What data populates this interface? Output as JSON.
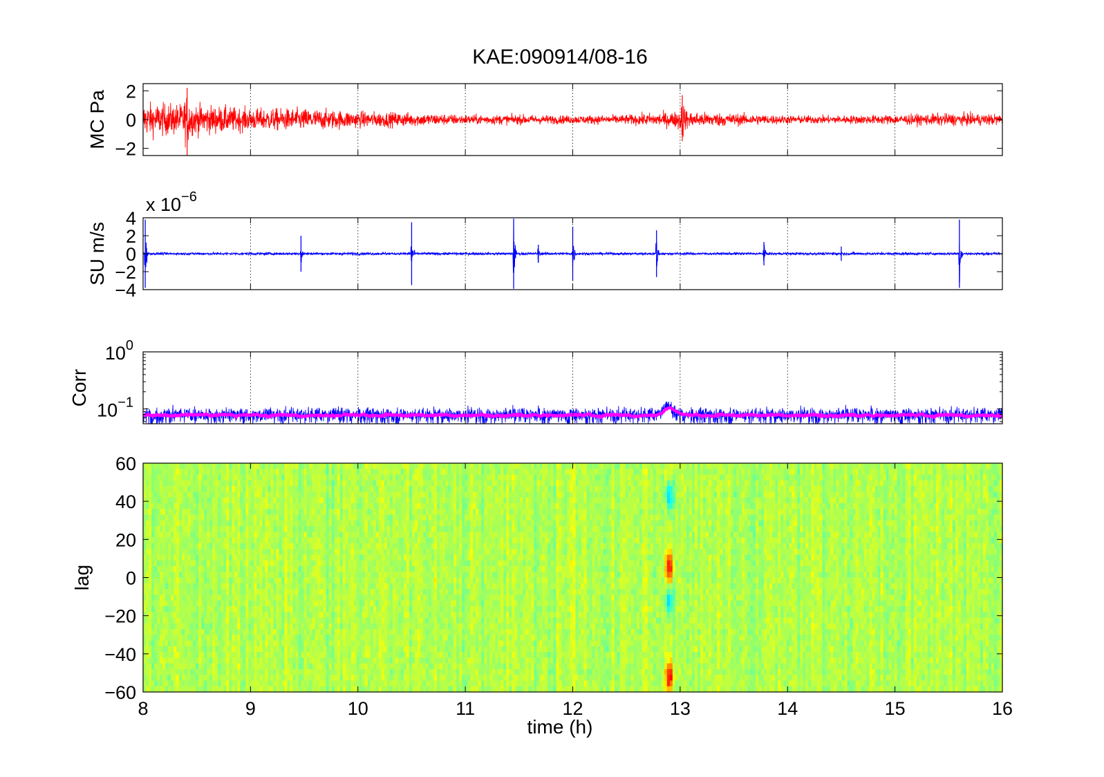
{
  "figure": {
    "title": "KAE:090914/08-16",
    "xlabel": "time (h)"
  },
  "chart_data": [
    {
      "type": "line",
      "ylabel": "MC Pa",
      "xlim": [
        8,
        16
      ],
      "ylim": [
        -2.5,
        2.5
      ],
      "yticks": [
        -2,
        0,
        2
      ],
      "ytick_labels": [
        "−2",
        "0",
        "2"
      ],
      "xticks": [
        8,
        9,
        10,
        11,
        12,
        13,
        14,
        15,
        16
      ],
      "grid": "x-dotted",
      "series": [
        {
          "color": "#ff0000",
          "description_envelope_hours": [
            8,
            8.5,
            9,
            9.5,
            10,
            10.5,
            11,
            11.5,
            12,
            12.5,
            13,
            13.5,
            14,
            14.5,
            15,
            15.5,
            16
          ],
          "amplitude_envelope": [
            1.2,
            1.1,
            0.8,
            0.8,
            0.6,
            0.5,
            0.35,
            0.35,
            0.3,
            0.35,
            0.6,
            0.45,
            0.3,
            0.3,
            0.35,
            0.45,
            0.4
          ]
        }
      ],
      "events": [
        {
          "x": 8.41,
          "y_min": -2.5,
          "y_max": 2.2
        },
        {
          "x": 13.02,
          "y_min": -1.5,
          "y_max": 1.7
        }
      ]
    },
    {
      "type": "line",
      "ylabel": "SU m/s",
      "multiplier": "x 10",
      "multiplier_exponent": "−6",
      "xlim": [
        8,
        16
      ],
      "ylim": [
        -4,
        4
      ],
      "yticks": [
        -4,
        -2,
        0,
        2,
        4
      ],
      "ytick_labels": [
        "−4",
        "−2",
        "0",
        "2",
        "4"
      ],
      "xticks": [
        8,
        9,
        10,
        11,
        12,
        13,
        14,
        15,
        16
      ],
      "grid": "x-dotted",
      "series": [
        {
          "color": "#0000ff",
          "baseline_amplitude": 0.15
        }
      ],
      "events": [
        {
          "x": 8.02,
          "amp": 3.8
        },
        {
          "x": 9.47,
          "amp": 2.0
        },
        {
          "x": 10.5,
          "amp": 3.5
        },
        {
          "x": 11.45,
          "amp": 3.9
        },
        {
          "x": 11.68,
          "amp": 1.0
        },
        {
          "x": 12.0,
          "amp": 3.0
        },
        {
          "x": 12.78,
          "amp": 2.6
        },
        {
          "x": 13.78,
          "amp": 1.3
        },
        {
          "x": 14.5,
          "amp": 0.8
        },
        {
          "x": 15.6,
          "amp": 3.8
        }
      ]
    },
    {
      "type": "line",
      "ylabel": "Corr",
      "yscale": "log",
      "xlim": [
        8,
        16
      ],
      "ylim": [
        0.055,
        1.0
      ],
      "ytick_labels": [
        {
          "base": "10",
          "exp": "0",
          "value": 1.0
        },
        {
          "base": "10",
          "exp": "−1",
          "value": 0.1
        }
      ],
      "xticks": [
        8,
        9,
        10,
        11,
        12,
        13,
        14,
        15,
        16
      ],
      "grid": "x-dotted",
      "series": [
        {
          "color": "#0000ff",
          "mean": 0.078,
          "spread": 0.025
        },
        {
          "color": "#ff00ff",
          "mean": 0.078,
          "spread": 0.008
        }
      ],
      "events": [
        {
          "x": 12.88,
          "value": 0.11
        }
      ]
    },
    {
      "type": "heatmap",
      "ylabel": "lag",
      "xlim": [
        8,
        16
      ],
      "ylim": [
        -60,
        60
      ],
      "yticks": [
        -60,
        -40,
        -20,
        0,
        20,
        40,
        60
      ],
      "ytick_labels": [
        "−60",
        "−40",
        "−20",
        "0",
        "20",
        "40",
        "60"
      ],
      "xticks": [
        8,
        9,
        10,
        11,
        12,
        13,
        14,
        15,
        16
      ],
      "xtick_labels": [
        "8",
        "9",
        "10",
        "11",
        "12",
        "13",
        "14",
        "15",
        "16"
      ],
      "colormap": "jet",
      "features": [
        {
          "x": 12.9,
          "lag": 5,
          "sign": "positive",
          "color": "#e03000"
        },
        {
          "x": 12.9,
          "lag": -12,
          "sign": "negative",
          "color": "#00b0e8"
        },
        {
          "x": 12.9,
          "lag": -52,
          "sign": "positive",
          "color": "#f0e000"
        },
        {
          "x": 12.9,
          "lag": 42,
          "sign": "negative",
          "color": "#30c8e0"
        }
      ]
    }
  ]
}
